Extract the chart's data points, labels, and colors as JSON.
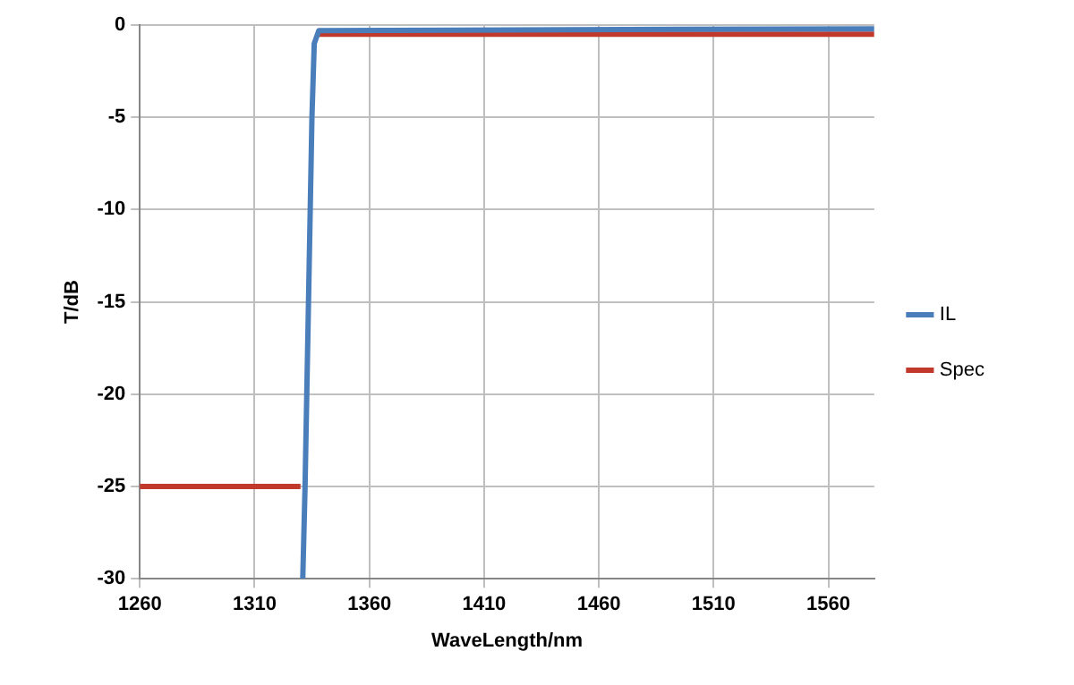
{
  "chart_data": {
    "type": "line",
    "xlabel": "WaveLength/nm",
    "ylabel": "T/dB",
    "xlim": [
      1260,
      1580
    ],
    "xticks": [
      1260,
      1310,
      1360,
      1410,
      1460,
      1510,
      1560
    ],
    "ylim": [
      -30,
      0
    ],
    "yticks": [
      -30,
      -25,
      -20,
      -15,
      -10,
      -5,
      0
    ],
    "grid": true,
    "legend": "right",
    "marker": "none",
    "line_style": "solid",
    "series": [
      {
        "name": "IL",
        "color": "#4a7ebb",
        "x": [
          1331,
          1332,
          1333.5,
          1335,
          1336,
          1338,
          1580
        ],
        "values": [
          -30,
          -25,
          -15,
          -5,
          -1,
          -0.3,
          -0.2
        ]
      },
      {
        "name": "Spec",
        "color": "#c0392b",
        "x": [
          1260,
          1330,
          null,
          1338,
          1580
        ],
        "values": [
          -25,
          -25,
          null,
          -0.5,
          -0.5
        ]
      }
    ]
  }
}
